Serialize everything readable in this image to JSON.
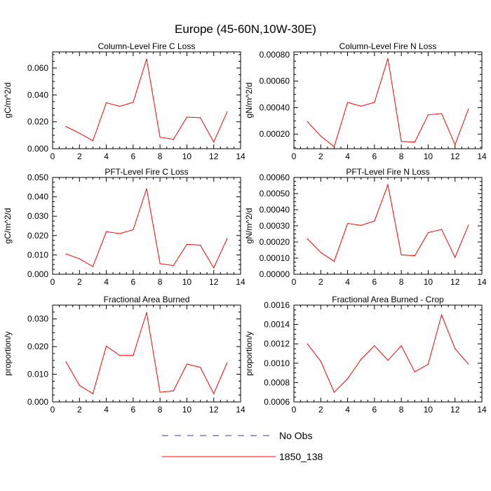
{
  "title": "Europe (45-60N,10W-30E)",
  "colors": {
    "model": "#ff0000",
    "obs": "#3a3aa0",
    "axis": "#000000"
  },
  "legend": {
    "entries": [
      {
        "label": "No Obs",
        "style": "dashed",
        "color": "#3a3aa0"
      },
      {
        "label": "1850_138",
        "style": "solid",
        "color": "#ff0000"
      }
    ]
  },
  "chart_data": [
    {
      "type": "line",
      "title": "Column-Level Fire C Loss",
      "ylabel": "gC/m^2/d",
      "xlim": [
        0,
        14
      ],
      "ylim": [
        0,
        0.072
      ],
      "xticks": [
        "0",
        "2",
        "4",
        "6",
        "8",
        "10",
        "12",
        "14"
      ],
      "yticks": [
        {
          "v": 0,
          "label": "0.000"
        },
        {
          "v": 0.02,
          "label": "0.020"
        },
        {
          "v": 0.04,
          "label": "0.040"
        },
        {
          "v": 0.06,
          "label": "0.060"
        }
      ],
      "series": [
        {
          "x": [
            1,
            2,
            3,
            4,
            5,
            6,
            7,
            8,
            9,
            10,
            11,
            12,
            13
          ],
          "values": [
            0.0165,
            0.0115,
            0.006,
            0.0342,
            0.0315,
            0.0345,
            0.0668,
            0.0085,
            0.007,
            0.0235,
            0.023,
            0.005,
            0.0275
          ]
        }
      ]
    },
    {
      "type": "line",
      "title": "Column-Level Fire N Loss",
      "ylabel": "gN/m^2/d",
      "xlim": [
        0,
        14
      ],
      "ylim": [
        9e-05,
        0.00082
      ],
      "xticks": [
        "0",
        "2",
        "4",
        "6",
        "8",
        "10",
        "12",
        "14"
      ],
      "yticks": [
        {
          "v": 0.0002,
          "label": "0.00020"
        },
        {
          "v": 0.0004,
          "label": "0.00040"
        },
        {
          "v": 0.0006,
          "label": "0.00060"
        },
        {
          "v": 0.0008,
          "label": "0.00080"
        }
      ],
      "series": [
        {
          "x": [
            1,
            2,
            3,
            4,
            5,
            6,
            7,
            8,
            9,
            10,
            11,
            12,
            13
          ],
          "values": [
            0.000295,
            0.000185,
            0.000105,
            0.00044,
            0.00041,
            0.00044,
            0.00077,
            0.000145,
            0.00014,
            0.000345,
            0.000355,
            0.00012,
            0.00039
          ]
        }
      ]
    },
    {
      "type": "line",
      "title": "PFT-Level Fire C Loss",
      "ylabel": "gC/m^2/d",
      "xlim": [
        0,
        14
      ],
      "ylim": [
        0,
        0.05
      ],
      "xticks": [
        "0",
        "2",
        "4",
        "6",
        "8",
        "10",
        "12",
        "14"
      ],
      "yticks": [
        {
          "v": 0,
          "label": "0.000"
        },
        {
          "v": 0.01,
          "label": "0.010"
        },
        {
          "v": 0.02,
          "label": "0.020"
        },
        {
          "v": 0.03,
          "label": "0.030"
        },
        {
          "v": 0.04,
          "label": "0.040"
        },
        {
          "v": 0.05,
          "label": "0.050"
        }
      ],
      "series": [
        {
          "x": [
            1,
            2,
            3,
            4,
            5,
            6,
            7,
            8,
            9,
            10,
            11,
            12,
            13
          ],
          "values": [
            0.0105,
            0.008,
            0.004,
            0.022,
            0.021,
            0.023,
            0.0442,
            0.0055,
            0.0045,
            0.0155,
            0.015,
            0.0033,
            0.0185
          ]
        }
      ]
    },
    {
      "type": "line",
      "title": "PFT-Level Fire N Loss",
      "ylabel": "gN/m^2/d",
      "xlim": [
        0,
        14
      ],
      "ylim": [
        0,
        0.0006
      ],
      "xticks": [
        "0",
        "2",
        "4",
        "6",
        "8",
        "10",
        "12",
        "14"
      ],
      "yticks": [
        {
          "v": 0,
          "label": "0.00000"
        },
        {
          "v": 0.0001,
          "label": "0.00010"
        },
        {
          "v": 0.0002,
          "label": "0.00020"
        },
        {
          "v": 0.0003,
          "label": "0.00030"
        },
        {
          "v": 0.0004,
          "label": "0.00040"
        },
        {
          "v": 0.0005,
          "label": "0.00050"
        },
        {
          "v": 0.0006,
          "label": "0.00060"
        }
      ],
      "series": [
        {
          "x": [
            1,
            2,
            3,
            4,
            5,
            6,
            7,
            8,
            9,
            10,
            11,
            12,
            13
          ],
          "values": [
            0.00022,
            0.000135,
            8e-05,
            0.000315,
            0.000303,
            0.00033,
            0.000555,
            0.00012,
            0.000115,
            0.000258,
            0.000278,
            0.000105,
            0.000305
          ]
        }
      ]
    },
    {
      "type": "line",
      "title": "Fractional Area Burned",
      "ylabel": "proportion/y",
      "xlim": [
        0,
        14
      ],
      "ylim": [
        0,
        0.035
      ],
      "xticks": [
        "0",
        "2",
        "4",
        "6",
        "8",
        "10",
        "12",
        "14"
      ],
      "yticks": [
        {
          "v": 0,
          "label": "0.000"
        },
        {
          "v": 0.01,
          "label": "0.010"
        },
        {
          "v": 0.02,
          "label": "0.020"
        },
        {
          "v": 0.03,
          "label": "0.030"
        }
      ],
      "series": [
        {
          "x": [
            1,
            2,
            3,
            4,
            5,
            6,
            7,
            8,
            9,
            10,
            11,
            12,
            13
          ],
          "values": [
            0.0145,
            0.006,
            0.003,
            0.0202,
            0.0168,
            0.0168,
            0.0323,
            0.0035,
            0.004,
            0.0137,
            0.0125,
            0.003,
            0.0142
          ]
        }
      ]
    },
    {
      "type": "line",
      "title": "Fractional Area Burned - Crop",
      "ylabel": "proportion/y",
      "xlim": [
        0,
        14
      ],
      "ylim": [
        0.0006,
        0.0016
      ],
      "xticks": [
        "0",
        "2",
        "4",
        "6",
        "8",
        "10",
        "12",
        "14"
      ],
      "yticks": [
        {
          "v": 0.0006,
          "label": "0.0006"
        },
        {
          "v": 0.0008,
          "label": "0.0008"
        },
        {
          "v": 0.001,
          "label": "0.0010"
        },
        {
          "v": 0.0012,
          "label": "0.0012"
        },
        {
          "v": 0.0014,
          "label": "0.0014"
        },
        {
          "v": 0.0016,
          "label": "0.0016"
        }
      ],
      "series": [
        {
          "x": [
            1,
            2,
            3,
            4,
            5,
            6,
            7,
            8,
            9,
            10,
            11,
            12,
            13
          ],
          "values": [
            0.0012,
            0.00102,
            0.0007,
            0.00084,
            0.00104,
            0.00118,
            0.00103,
            0.00118,
            0.00091,
            0.00099,
            0.0015,
            0.00115,
            0.00099
          ]
        }
      ]
    }
  ]
}
